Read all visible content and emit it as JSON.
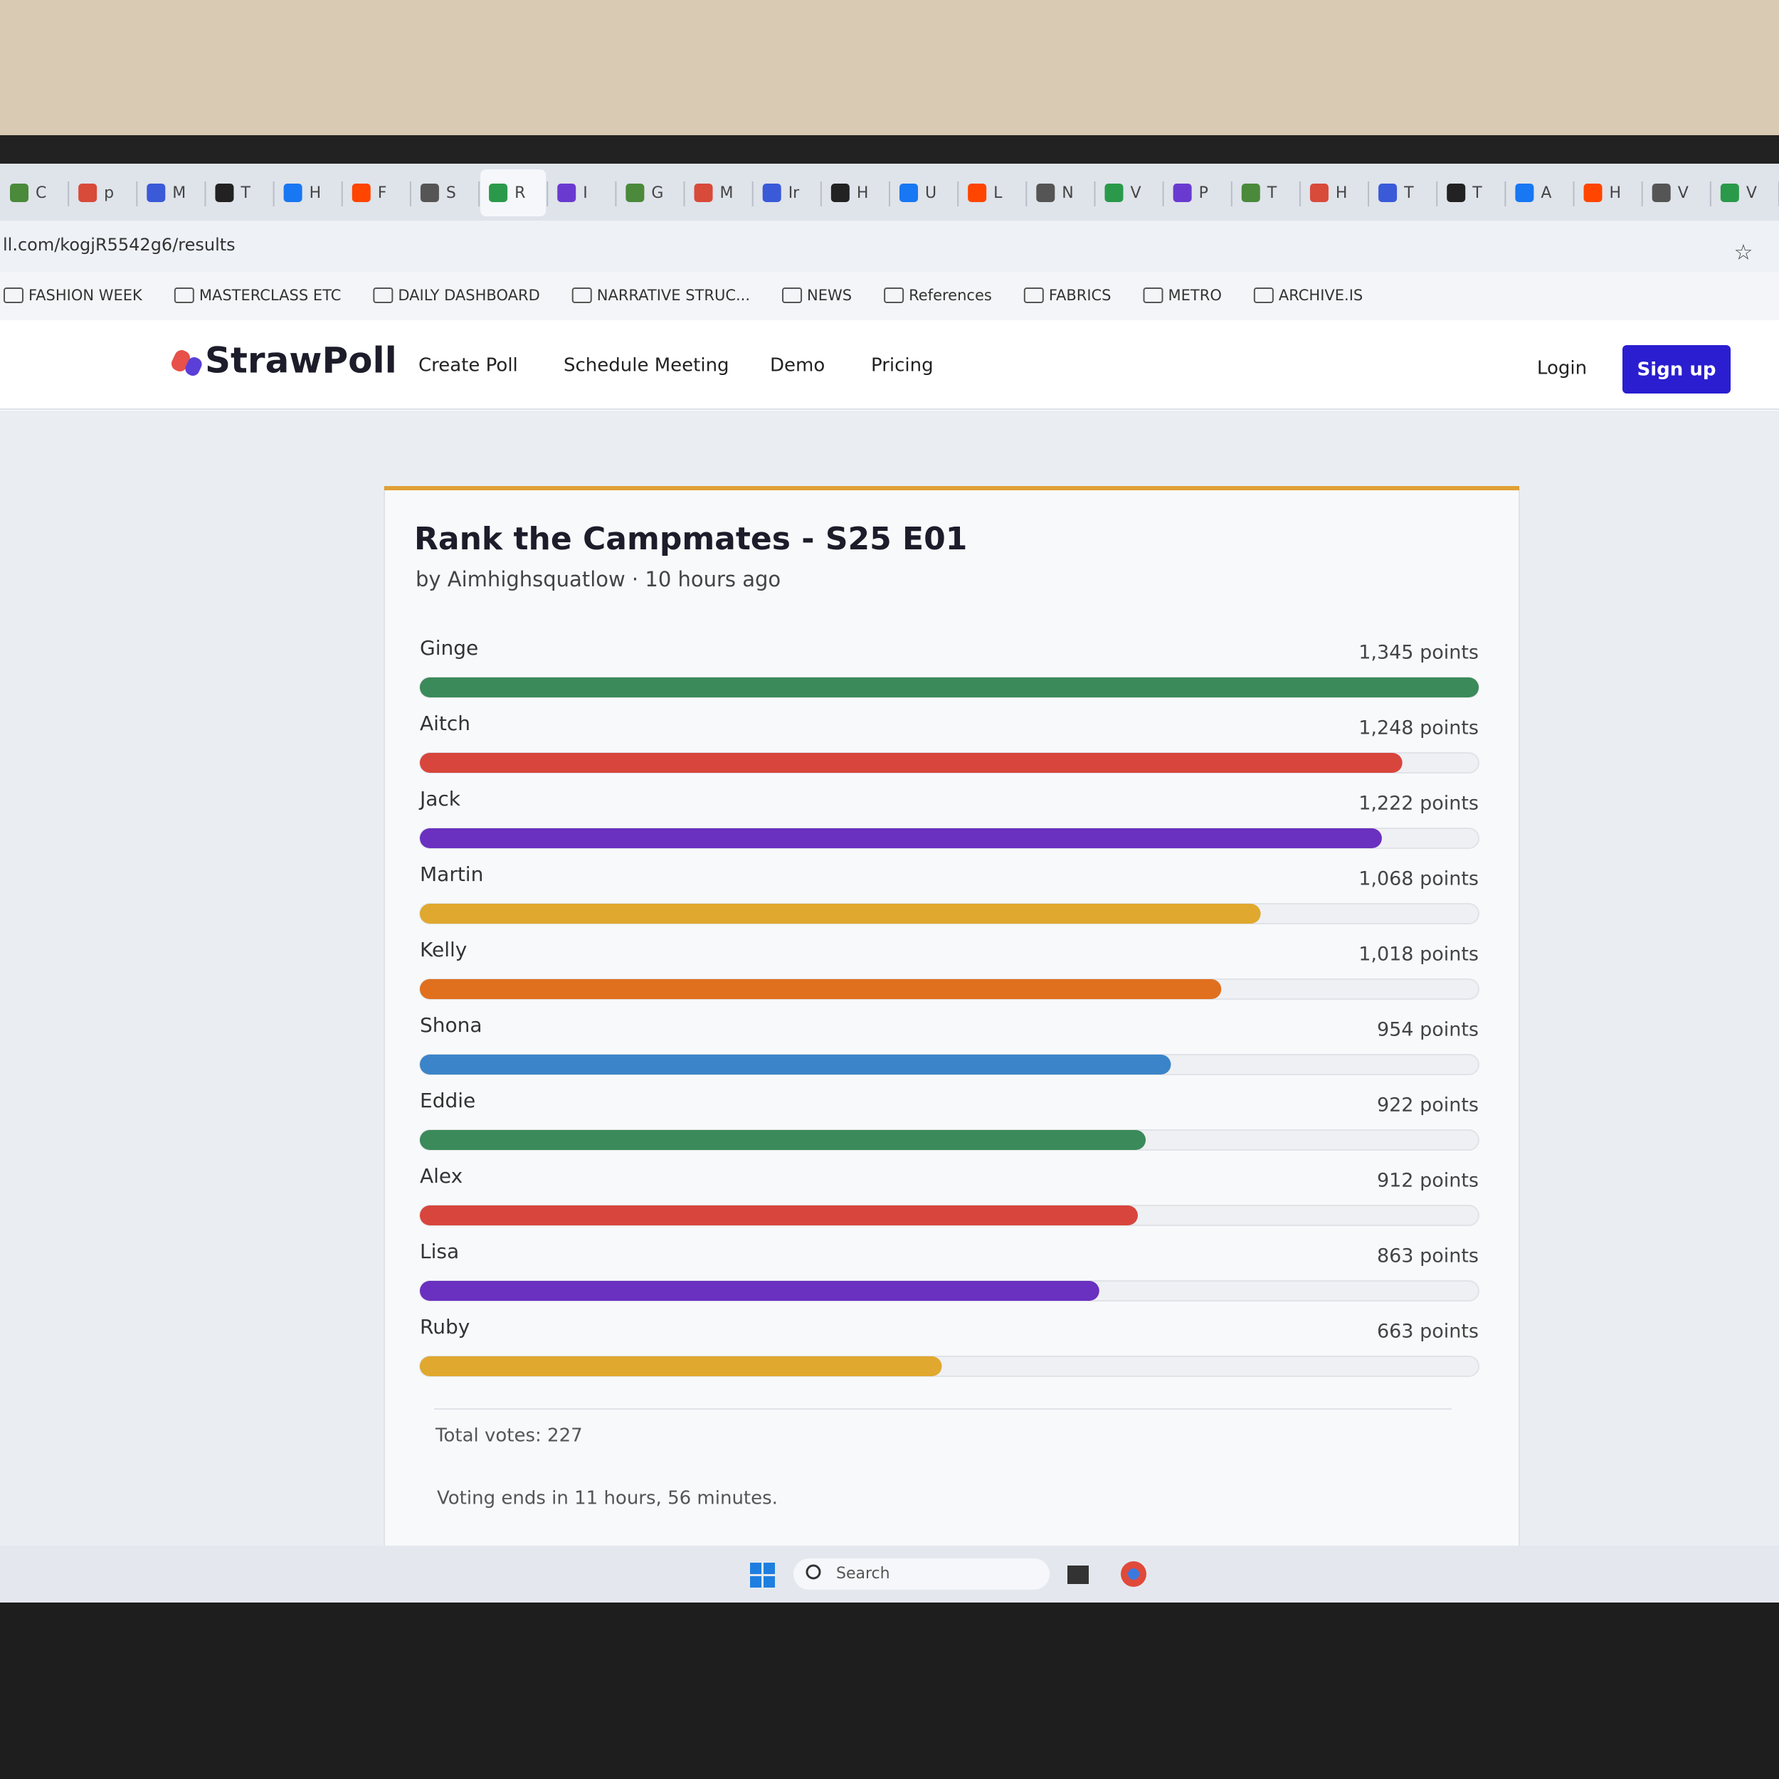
{
  "browser": {
    "tabs": [
      "C",
      "p",
      "M",
      "T",
      "H",
      "F",
      "S",
      "R",
      "I",
      "G",
      "M",
      "Ir",
      "H",
      "U",
      "L",
      "N",
      "V",
      "P",
      "T",
      "H",
      "T",
      "T",
      "A",
      "H",
      "V",
      "V"
    ],
    "url": "ll.com/kogjR5542g6/results",
    "bookmarks": [
      "FASHION WEEK",
      "MASTERCLASS ETC",
      "DAILY DASHBOARD",
      "NARRATIVE STRUC...",
      "NEWS",
      "References",
      "FABRICS",
      "METRO",
      "ARCHIVE.IS"
    ]
  },
  "nav": {
    "logo": "StrawPoll",
    "links": [
      "Create Poll",
      "Schedule Meeting",
      "Demo",
      "Pricing"
    ],
    "login": "Login",
    "signup": "Sign up"
  },
  "poll": {
    "title": "Rank the Campmates - S25 E01",
    "byline": "by Aimhighsquatlow · 10 hours ago",
    "options": [
      {
        "label": "Ginge",
        "points": 1345,
        "points_label": "1,345 points",
        "color": "#3b8a5a"
      },
      {
        "label": "Aitch",
        "points": 1248,
        "points_label": "1,248 points",
        "color": "#d8453c"
      },
      {
        "label": "Jack",
        "points": 1222,
        "points_label": "1,222 points",
        "color": "#6a30c0"
      },
      {
        "label": "Martin",
        "points": 1068,
        "points_label": "1,068 points",
        "color": "#e0a82e"
      },
      {
        "label": "Kelly",
        "points": 1018,
        "points_label": "1,018 points",
        "color": "#e0701e"
      },
      {
        "label": "Shona",
        "points": 954,
        "points_label": "954 points",
        "color": "#3b84c9"
      },
      {
        "label": "Eddie",
        "points": 922,
        "points_label": "922 points",
        "color": "#3b8a5a"
      },
      {
        "label": "Alex",
        "points": 912,
        "points_label": "912 points",
        "color": "#d8453c"
      },
      {
        "label": "Lisa",
        "points": 863,
        "points_label": "863 points",
        "color": "#6a30c0"
      },
      {
        "label": "Ruby",
        "points": 663,
        "points_label": "663 points",
        "color": "#e0a82e"
      }
    ],
    "total_votes": "Total votes: 227",
    "voting_ends": "Voting ends in 11 hours, 56 minutes."
  },
  "taskbar": {
    "search": "Search"
  }
}
